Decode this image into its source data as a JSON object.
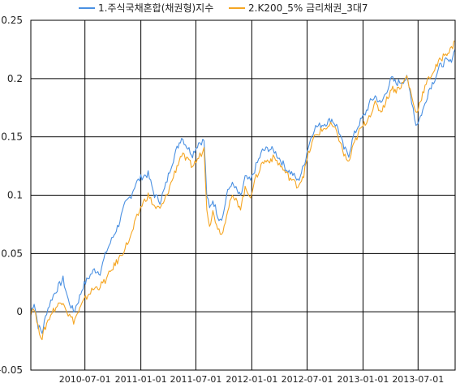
{
  "chart_data": {
    "type": "line",
    "legend_position": "top",
    "grid": true,
    "x_range": [
      "2010-01-04",
      "2013-10-31"
    ],
    "ylim": [
      -0.05,
      0.25
    ],
    "y_ticks": [
      "-0.05",
      "0",
      "0.05",
      "0.1",
      "0.15",
      "0.2",
      "0.25"
    ],
    "y_tick_values": [
      -0.05,
      0,
      0.05,
      0.1,
      0.15,
      0.2,
      0.25
    ],
    "x_ticks": [
      "2010-07-01",
      "2011-01-01",
      "2011-07-01",
      "2012-01-01",
      "2012-07-01",
      "2013-01-01",
      "2013-07-01"
    ],
    "series": [
      {
        "name": "1.주식국채혼합(채권형)지수",
        "color": "#4a90e2",
        "points": [
          [
            "2010-01-04",
            0.0
          ],
          [
            "2010-01-15",
            0.008
          ],
          [
            "2010-01-28",
            -0.012
          ],
          [
            "2010-02-10",
            -0.018
          ],
          [
            "2010-02-25",
            0.0
          ],
          [
            "2010-03-15",
            0.012
          ],
          [
            "2010-04-01",
            0.02
          ],
          [
            "2010-04-20",
            0.028
          ],
          [
            "2010-05-07",
            0.01
          ],
          [
            "2010-05-25",
            0.0
          ],
          [
            "2010-06-10",
            0.01
          ],
          [
            "2010-06-25",
            0.022
          ],
          [
            "2010-07-15",
            0.03
          ],
          [
            "2010-08-01",
            0.036
          ],
          [
            "2010-08-20",
            0.034
          ],
          [
            "2010-09-10",
            0.052
          ],
          [
            "2010-10-01",
            0.064
          ],
          [
            "2010-10-20",
            0.075
          ],
          [
            "2010-11-10",
            0.092
          ],
          [
            "2010-11-30",
            0.1
          ],
          [
            "2010-12-15",
            0.11
          ],
          [
            "2011-01-05",
            0.116
          ],
          [
            "2011-01-25",
            0.118
          ],
          [
            "2011-02-15",
            0.1
          ],
          [
            "2011-03-05",
            0.095
          ],
          [
            "2011-03-20",
            0.105
          ],
          [
            "2011-04-10",
            0.125
          ],
          [
            "2011-04-30",
            0.14
          ],
          [
            "2011-05-15",
            0.15
          ],
          [
            "2011-06-01",
            0.142
          ],
          [
            "2011-06-20",
            0.135
          ],
          [
            "2011-07-10",
            0.145
          ],
          [
            "2011-07-28",
            0.147
          ],
          [
            "2011-08-06",
            0.1
          ],
          [
            "2011-08-15",
            0.088
          ],
          [
            "2011-08-26",
            0.096
          ],
          [
            "2011-09-15",
            0.08
          ],
          [
            "2011-09-28",
            0.082
          ],
          [
            "2011-10-10",
            0.1
          ],
          [
            "2011-10-25",
            0.11
          ],
          [
            "2011-11-10",
            0.105
          ],
          [
            "2011-11-25",
            0.098
          ],
          [
            "2011-12-10",
            0.115
          ],
          [
            "2011-12-28",
            0.112
          ],
          [
            "2012-01-15",
            0.125
          ],
          [
            "2012-02-05",
            0.138
          ],
          [
            "2012-02-25",
            0.14
          ],
          [
            "2012-03-15",
            0.138
          ],
          [
            "2012-04-05",
            0.13
          ],
          [
            "2012-04-25",
            0.122
          ],
          [
            "2012-05-15",
            0.118
          ],
          [
            "2012-06-01",
            0.112
          ],
          [
            "2012-06-20",
            0.125
          ],
          [
            "2012-07-05",
            0.142
          ],
          [
            "2012-07-25",
            0.158
          ],
          [
            "2012-08-15",
            0.16
          ],
          [
            "2012-09-01",
            0.162
          ],
          [
            "2012-09-20",
            0.165
          ],
          [
            "2012-10-10",
            0.158
          ],
          [
            "2012-10-30",
            0.14
          ],
          [
            "2012-11-15",
            0.135
          ],
          [
            "2012-11-30",
            0.15
          ],
          [
            "2012-12-20",
            0.162
          ],
          [
            "2013-01-08",
            0.17
          ],
          [
            "2013-01-25",
            0.18
          ],
          [
            "2013-02-10",
            0.185
          ],
          [
            "2013-03-01",
            0.178
          ],
          [
            "2013-03-20",
            0.19
          ],
          [
            "2013-04-05",
            0.2
          ],
          [
            "2013-04-20",
            0.196
          ],
          [
            "2013-05-10",
            0.198
          ],
          [
            "2013-05-25",
            0.2
          ],
          [
            "2013-06-05",
            0.188
          ],
          [
            "2013-06-15",
            0.175
          ],
          [
            "2013-06-24",
            0.16
          ],
          [
            "2013-07-05",
            0.165
          ],
          [
            "2013-07-20",
            0.175
          ],
          [
            "2013-08-05",
            0.19
          ],
          [
            "2013-08-25",
            0.2
          ],
          [
            "2013-09-10",
            0.21
          ],
          [
            "2013-09-30",
            0.215
          ],
          [
            "2013-10-15",
            0.214
          ],
          [
            "2013-10-31",
            0.225
          ]
        ]
      },
      {
        "name": "2.K200_5% 금리채권_3대7",
        "color": "#f5a623",
        "points": [
          [
            "2010-01-04",
            0.0
          ],
          [
            "2010-01-15",
            0.004
          ],
          [
            "2010-01-28",
            -0.014
          ],
          [
            "2010-02-10",
            -0.022
          ],
          [
            "2010-02-25",
            -0.01
          ],
          [
            "2010-03-15",
            0.0
          ],
          [
            "2010-04-01",
            0.005
          ],
          [
            "2010-04-20",
            0.01
          ],
          [
            "2010-05-07",
            -0.002
          ],
          [
            "2010-05-25",
            -0.008
          ],
          [
            "2010-06-10",
            0.0
          ],
          [
            "2010-06-25",
            0.008
          ],
          [
            "2010-07-15",
            0.016
          ],
          [
            "2010-08-01",
            0.02
          ],
          [
            "2010-08-20",
            0.022
          ],
          [
            "2010-09-10",
            0.028
          ],
          [
            "2010-10-01",
            0.038
          ],
          [
            "2010-10-20",
            0.045
          ],
          [
            "2010-11-10",
            0.055
          ],
          [
            "2010-11-30",
            0.065
          ],
          [
            "2010-12-15",
            0.078
          ],
          [
            "2011-01-05",
            0.092
          ],
          [
            "2011-01-25",
            0.1
          ],
          [
            "2011-02-15",
            0.09
          ],
          [
            "2011-03-05",
            0.088
          ],
          [
            "2011-03-20",
            0.095
          ],
          [
            "2011-04-10",
            0.11
          ],
          [
            "2011-04-30",
            0.125
          ],
          [
            "2011-05-15",
            0.135
          ],
          [
            "2011-06-01",
            0.13
          ],
          [
            "2011-06-20",
            0.125
          ],
          [
            "2011-07-10",
            0.132
          ],
          [
            "2011-07-28",
            0.14
          ],
          [
            "2011-08-06",
            0.09
          ],
          [
            "2011-08-15",
            0.075
          ],
          [
            "2011-08-26",
            0.085
          ],
          [
            "2011-09-15",
            0.07
          ],
          [
            "2011-09-28",
            0.068
          ],
          [
            "2011-10-10",
            0.085
          ],
          [
            "2011-10-25",
            0.098
          ],
          [
            "2011-11-10",
            0.095
          ],
          [
            "2011-11-25",
            0.09
          ],
          [
            "2011-12-10",
            0.105
          ],
          [
            "2011-12-28",
            0.1
          ],
          [
            "2012-01-15",
            0.115
          ],
          [
            "2012-02-05",
            0.128
          ],
          [
            "2012-02-25",
            0.13
          ],
          [
            "2012-03-15",
            0.132
          ],
          [
            "2012-04-05",
            0.125
          ],
          [
            "2012-04-25",
            0.118
          ],
          [
            "2012-05-15",
            0.112
          ],
          [
            "2012-06-01",
            0.108
          ],
          [
            "2012-06-20",
            0.118
          ],
          [
            "2012-07-05",
            0.135
          ],
          [
            "2012-07-25",
            0.15
          ],
          [
            "2012-08-15",
            0.155
          ],
          [
            "2012-09-01",
            0.158
          ],
          [
            "2012-09-20",
            0.16
          ],
          [
            "2012-10-10",
            0.152
          ],
          [
            "2012-10-30",
            0.135
          ],
          [
            "2012-11-15",
            0.128
          ],
          [
            "2012-11-30",
            0.142
          ],
          [
            "2012-12-20",
            0.155
          ],
          [
            "2013-01-08",
            0.162
          ],
          [
            "2013-01-25",
            0.17
          ],
          [
            "2013-02-10",
            0.178
          ],
          [
            "2013-03-01",
            0.172
          ],
          [
            "2013-03-20",
            0.182
          ],
          [
            "2013-04-05",
            0.192
          ],
          [
            "2013-04-20",
            0.19
          ],
          [
            "2013-05-10",
            0.195
          ],
          [
            "2013-05-25",
            0.202
          ],
          [
            "2013-06-05",
            0.19
          ],
          [
            "2013-06-15",
            0.18
          ],
          [
            "2013-06-24",
            0.17
          ],
          [
            "2013-07-05",
            0.178
          ],
          [
            "2013-07-20",
            0.19
          ],
          [
            "2013-08-05",
            0.2
          ],
          [
            "2013-08-25",
            0.208
          ],
          [
            "2013-09-10",
            0.215
          ],
          [
            "2013-09-30",
            0.222
          ],
          [
            "2013-10-15",
            0.224
          ],
          [
            "2013-10-31",
            0.232
          ]
        ]
      }
    ]
  }
}
